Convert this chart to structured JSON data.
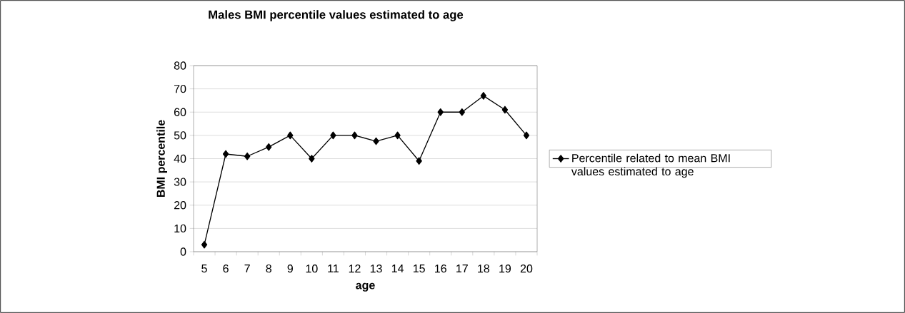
{
  "chart_data": {
    "type": "line",
    "title": "Males BMI percentile values estimated to age",
    "xlabel": "age",
    "ylabel": "BMI percentile",
    "categories": [
      "5",
      "6",
      "7",
      "8",
      "9",
      "10",
      "11",
      "12",
      "13",
      "14",
      "15",
      "16",
      "17",
      "18",
      "19",
      "20"
    ],
    "series": [
      {
        "name": "Percentile related to mean BMI values estimated to age",
        "color": "#000000",
        "values": [
          3,
          42,
          41,
          45,
          50,
          40,
          50,
          50,
          47.5,
          50,
          39,
          60,
          60,
          67,
          61,
          50
        ]
      }
    ],
    "ylim": [
      0,
      80
    ],
    "yticks": [
      0,
      10,
      20,
      30,
      40,
      50,
      60,
      70,
      80
    ],
    "grid": "y",
    "legend": "right",
    "marker": "diamond",
    "line_style": "solid"
  }
}
